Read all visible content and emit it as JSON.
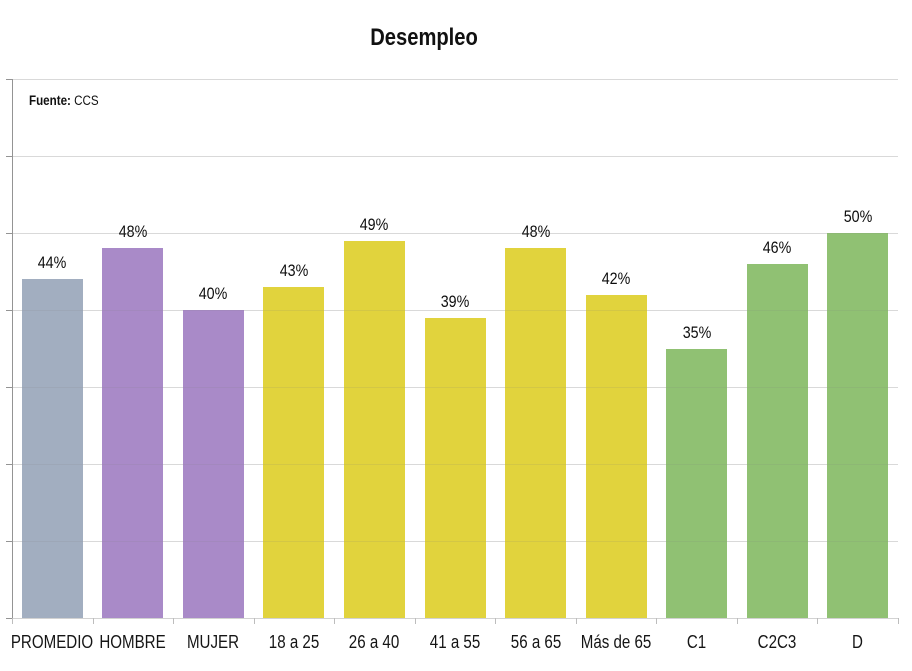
{
  "header": {
    "title": "Desempleo"
  },
  "source": {
    "label": "Fuente:",
    "value": "CCS"
  },
  "colors": {
    "average_gray": "#a2aec0",
    "gender_purple": "#a98ac8",
    "age_yellow": "#e1d33d",
    "socio_green": "#90c173",
    "gridline": "#e7e7e7",
    "axis": "#949494",
    "text": "#111111"
  },
  "chart_data": {
    "type": "bar",
    "title": "Desempleo",
    "source": "Fuente: CCS",
    "categories": [
      "PROMEDIO",
      "HOMBRE",
      "MUJER",
      "18 a 25",
      "26 a 40",
      "41 a 55",
      "56 a 65",
      "Más de 65",
      "C1",
      "C2C3",
      "D"
    ],
    "values": [
      44,
      48,
      40,
      43,
      49,
      39,
      48,
      42,
      35,
      46,
      50
    ],
    "labels": [
      "44%",
      "48%",
      "40%",
      "43%",
      "49%",
      "39%",
      "48%",
      "42%",
      "35%",
      "46%",
      "50%"
    ],
    "bar_colors": [
      "#a2aec0",
      "#a98ac8",
      "#a98ac8",
      "#e1d33d",
      "#e1d33d",
      "#e1d33d",
      "#e1d33d",
      "#e1d33d",
      "#90c173",
      "#90c173",
      "#90c173"
    ],
    "unit": "%",
    "xlabel": "",
    "ylabel": "",
    "ylim": [
      0,
      70
    ],
    "grid_step_percent": 10,
    "grid": true,
    "y_tick_labels_visible": false,
    "legend_position": "none"
  }
}
